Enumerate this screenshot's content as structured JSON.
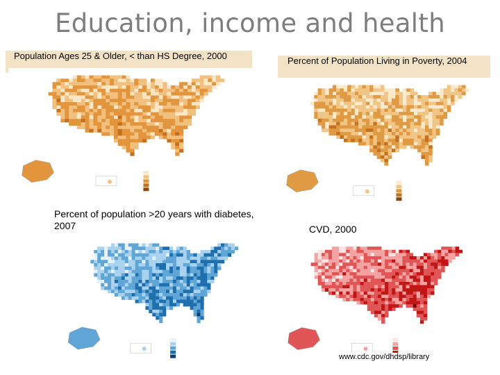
{
  "slide": {
    "title": "Education, income and health"
  },
  "panels": {
    "education": {
      "label": "Population Ages 25 & Older, < than HS Degree, 2000",
      "colors": [
        "#fbe7c6",
        "#f1c07e",
        "#e2953d",
        "#c66f1c",
        "#8a4a12"
      ]
    },
    "poverty": {
      "label": "Percent of Population Living in Poverty, 2004",
      "colors": [
        "#fbe9cb",
        "#f0c585",
        "#e09a44",
        "#c4721f",
        "#854613"
      ]
    },
    "diabetes": {
      "label": "Percent of population >20 years with diabetes, 2007",
      "colors": [
        "#e6f2fb",
        "#a9d2ee",
        "#5fa6d6",
        "#1f6fae",
        "#0d3f73"
      ]
    },
    "cvd": {
      "label": "CVD, 2000",
      "colors": [
        "#fde3e3",
        "#f4a3a3",
        "#e05555",
        "#c01616",
        "#7a0505"
      ]
    }
  },
  "credit": "www.cdc.gov/dhdsp/library"
}
